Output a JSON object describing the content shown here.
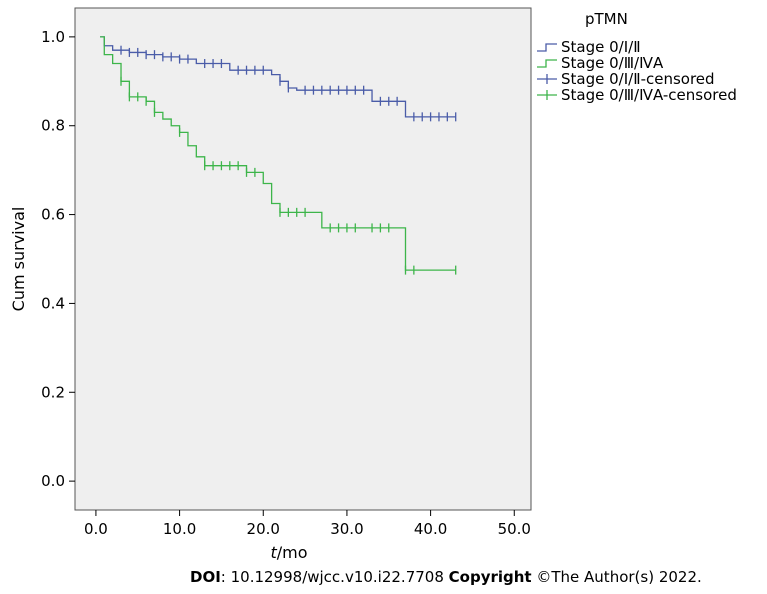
{
  "chart_data": {
    "type": "line",
    "step": true,
    "title": "",
    "xlabel_italic": "t",
    "xlabel_rest": "/mo",
    "ylabel": "Cum survival",
    "xlim": [
      -2.5,
      52
    ],
    "ylim": [
      -0.065,
      1.065
    ],
    "xticks": [
      0,
      10,
      20,
      30,
      40,
      50
    ],
    "xtick_labels": [
      "0.0",
      "10.0",
      "20.0",
      "30.0",
      "40.0",
      "50.0"
    ],
    "yticks": [
      0,
      0.2,
      0.4,
      0.6,
      0.8,
      1.0
    ],
    "ytick_labels": [
      "0.0",
      "0.2",
      "0.4",
      "0.6",
      "0.8",
      "1.0"
    ],
    "grid": false,
    "legend_position": "top-right, outside plot",
    "legend_title": "pTMN",
    "legend_entries": [
      "Stage 0/Ⅰ/Ⅱ",
      "Stage 0/Ⅲ/ⅣA",
      "Stage 0/Ⅰ/Ⅱ-censored",
      "Stage 0/Ⅲ/ⅣA-censored"
    ],
    "series": [
      {
        "name": "Stage 0/Ⅰ/Ⅱ",
        "color": "#4a5ca8",
        "steps": [
          [
            0.5,
            1.0
          ],
          [
            1.0,
            0.98
          ],
          [
            2.0,
            0.97
          ],
          [
            4.0,
            0.965
          ],
          [
            6.0,
            0.96
          ],
          [
            8.0,
            0.955
          ],
          [
            10.0,
            0.95
          ],
          [
            12.0,
            0.94
          ],
          [
            16.0,
            0.925
          ],
          [
            21.0,
            0.915
          ],
          [
            22.0,
            0.9
          ],
          [
            23.0,
            0.885
          ],
          [
            24.0,
            0.88
          ],
          [
            33.0,
            0.855
          ],
          [
            37.0,
            0.82
          ],
          [
            43.0,
            0.82
          ]
        ],
        "censored": [
          3,
          4,
          5,
          6,
          7,
          8,
          9,
          10,
          11,
          13,
          14,
          15,
          17,
          18,
          19,
          20,
          22,
          23,
          25,
          26,
          27,
          28,
          29,
          30,
          31,
          32,
          34,
          35,
          36,
          38,
          39,
          40,
          41,
          42,
          43
        ]
      },
      {
        "name": "Stage 0/Ⅲ/ⅣA",
        "color": "#3db54a",
        "steps": [
          [
            0.5,
            1.0
          ],
          [
            1.0,
            0.96
          ],
          [
            2.0,
            0.94
          ],
          [
            3.0,
            0.9
          ],
          [
            4.0,
            0.865
          ],
          [
            6.0,
            0.855
          ],
          [
            7.0,
            0.83
          ],
          [
            8.0,
            0.815
          ],
          [
            9.0,
            0.8
          ],
          [
            10.0,
            0.785
          ],
          [
            11.0,
            0.755
          ],
          [
            12.0,
            0.73
          ],
          [
            13.0,
            0.71
          ],
          [
            18.0,
            0.695
          ],
          [
            20.0,
            0.67
          ],
          [
            21.0,
            0.625
          ],
          [
            22.0,
            0.605
          ],
          [
            27.0,
            0.57
          ],
          [
            37.0,
            0.475
          ],
          [
            43.0,
            0.475
          ]
        ],
        "censored": [
          3,
          4,
          5,
          6,
          7,
          10,
          13,
          14,
          15,
          16,
          17,
          18,
          19,
          22,
          23,
          24,
          25,
          28,
          29,
          30,
          31,
          33,
          34,
          35,
          37,
          38,
          43
        ]
      }
    ]
  },
  "caption": {
    "doi_label": "DOI",
    "doi_value": ": 10.12998/wjcc.v10.i22.7708 ",
    "copyright_label": "Copyright",
    "copyright_value": " ©The Author(s) 2022."
  }
}
